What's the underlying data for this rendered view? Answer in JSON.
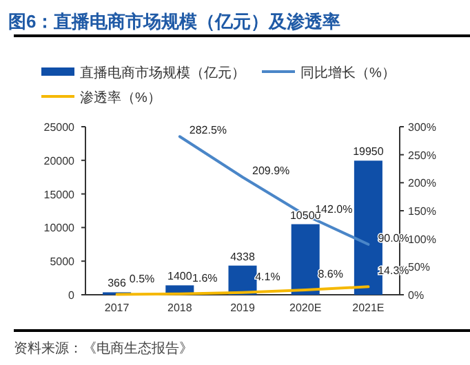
{
  "chart_data": {
    "type": "bar",
    "title": "图6：直播电商市场规模（亿元）及渗透率",
    "categories": [
      "2017",
      "2018",
      "2019",
      "2020E",
      "2021E"
    ],
    "series": [
      {
        "name": "直播电商市场规模（亿元）",
        "color": "#0f4fa8",
        "values": [
          366,
          1400,
          4338,
          10500,
          19950
        ],
        "value_labels": [
          "366",
          "1400",
          "4338",
          "10500",
          "19950"
        ]
      },
      {
        "name": "同比增长（%）",
        "type": "line",
        "axis": "y2",
        "color": "#4a86c8",
        "values": [
          null,
          282.5,
          209.9,
          142.0,
          90.0
        ],
        "value_labels": [
          null,
          "282.5%",
          "209.9%",
          "142.0%",
          "90.0%"
        ]
      },
      {
        "name": "渗透率（%）",
        "type": "line",
        "axis": "y2",
        "color": "#f5b800",
        "values": [
          0.5,
          1.6,
          4.1,
          8.6,
          14.3
        ],
        "value_labels": [
          "0.5%",
          "1.6%",
          "4.1%",
          "8.6%",
          "14.3%"
        ]
      }
    ],
    "ylim": [
      0,
      25000
    ],
    "yticks": [
      0,
      5000,
      10000,
      15000,
      20000,
      25000
    ],
    "y2lim": [
      0,
      300
    ],
    "y2ticks": [
      {
        "value": 0,
        "label": "0%"
      },
      {
        "value": 50,
        "label": "50%"
      },
      {
        "value": 100,
        "label": "100%"
      },
      {
        "value": 150,
        "label": "150%"
      },
      {
        "value": 200,
        "label": "200%"
      },
      {
        "value": 250,
        "label": "250%"
      },
      {
        "value": 300,
        "label": "300%"
      }
    ],
    "data_labels": false,
    "legend": "top",
    "grid": false,
    "marker": "none",
    "line_style": "solid",
    "annotations": [
      "资料来源：《电商生态报告》"
    ]
  }
}
